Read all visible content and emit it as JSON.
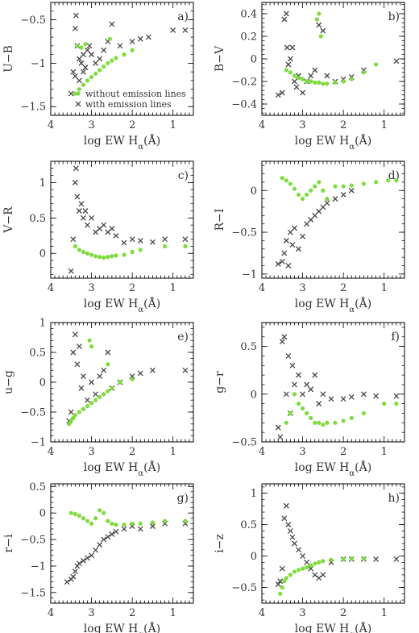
{
  "figure": {
    "colors": {
      "without": "#7fdc3f",
      "with": "#474747",
      "frame": "#000000",
      "text": "#333333"
    },
    "legend": {
      "without_label": "without emission lines",
      "with_label": "with emission lines",
      "placement": "bottom-right of panel a"
    }
  },
  "chart_data": [
    {
      "panel": "a)",
      "type": "scatter",
      "xlabel": "log EW H",
      "xlabel_sub": "α",
      "xlabel_tail": "(Å)",
      "ylabel": "U−B",
      "xlim": [
        4,
        0.5
      ],
      "ylim": [
        -1.6,
        -0.3
      ],
      "xticks": [
        4,
        3,
        2,
        1
      ],
      "yticks": [
        -0.5,
        -1,
        -1.5
      ],
      "ytick_labels": [
        "−0.5",
        "−1",
        "−1.5"
      ],
      "series": [
        {
          "name": "without emission lines",
          "marker": "dot",
          "x": [
            3.4,
            3.3,
            3.2,
            3.1,
            3.0,
            2.9,
            2.8,
            2.7,
            2.6,
            2.5,
            2.4,
            2.2,
            2.0,
            3.35,
            3.25,
            3.15,
            2.55
          ],
          "y": [
            -1.35,
            -1.3,
            -1.25,
            -1.2,
            -1.16,
            -1.12,
            -1.08,
            -1.04,
            -1.0,
            -0.97,
            -0.94,
            -0.9,
            -0.85,
            -0.8,
            -0.82,
            -0.78,
            -0.72
          ]
        },
        {
          "name": "with emission lines",
          "marker": "cross",
          "x": [
            3.5,
            3.45,
            3.4,
            3.38,
            3.35,
            3.3,
            3.25,
            3.2,
            3.15,
            3.1,
            3.05,
            3.0,
            2.9,
            2.8,
            2.7,
            2.6,
            2.5,
            2.3,
            2.0,
            1.8,
            1.6,
            1.0,
            0.7,
            3.4,
            3.3,
            3.2
          ],
          "y": [
            -1.35,
            -1.1,
            -0.6,
            -0.45,
            -0.8,
            -0.95,
            -1.0,
            -0.9,
            -1.05,
            -0.85,
            -0.8,
            -0.9,
            -1.0,
            -0.95,
            -0.85,
            -0.75,
            -0.55,
            -0.8,
            -0.75,
            -0.72,
            -0.7,
            -0.62,
            -0.62,
            -1.15,
            -1.2,
            -1.1
          ]
        }
      ]
    },
    {
      "panel": "b)",
      "type": "scatter",
      "xlabel": "log EW H",
      "xlabel_sub": "α",
      "xlabel_tail": "(Å)",
      "ylabel": "B−V",
      "xlim": [
        4,
        0.5
      ],
      "ylim": [
        -0.5,
        0.5
      ],
      "xticks": [
        4,
        3,
        2,
        1
      ],
      "yticks": [
        0.4,
        0.2,
        0,
        -0.2,
        -0.4
      ],
      "ytick_labels": [
        "0.4",
        "0.2",
        "0",
        "−0.2",
        "−0.4"
      ],
      "series": [
        {
          "name": "without emission lines",
          "marker": "dot",
          "x": [
            3.4,
            3.3,
            3.2,
            3.1,
            3.0,
            2.9,
            2.8,
            2.7,
            2.6,
            2.5,
            2.4,
            2.2,
            2.0,
            1.8,
            1.5,
            1.2,
            2.65,
            2.6,
            2.55
          ],
          "y": [
            -0.1,
            -0.12,
            -0.15,
            -0.17,
            -0.18,
            -0.2,
            -0.2,
            -0.21,
            -0.21,
            -0.22,
            -0.22,
            -0.21,
            -0.2,
            -0.18,
            -0.12,
            -0.05,
            0.35,
            0.4,
            0.2
          ]
        },
        {
          "name": "with emission lines",
          "marker": "cross",
          "x": [
            3.6,
            3.5,
            3.45,
            3.4,
            3.38,
            3.35,
            3.3,
            3.25,
            3.2,
            3.15,
            3.1,
            3.0,
            2.9,
            2.8,
            2.7,
            2.6,
            2.5,
            2.4,
            2.2,
            2.0,
            1.8,
            1.5,
            0.7
          ],
          "y": [
            -0.32,
            -0.3,
            0.35,
            0.4,
            0.1,
            -0.05,
            0.0,
            0.1,
            -0.2,
            -0.25,
            -0.15,
            -0.3,
            -0.2,
            -0.15,
            -0.1,
            0.3,
            0.25,
            -0.15,
            -0.2,
            -0.18,
            -0.16,
            -0.1,
            -0.02
          ]
        }
      ]
    },
    {
      "panel": "c)",
      "type": "scatter",
      "xlabel": "log EW H",
      "xlabel_sub": "α",
      "xlabel_tail": "(Å)",
      "ylabel": "V−R",
      "xlim": [
        4,
        0.5
      ],
      "ylim": [
        -0.35,
        1.3
      ],
      "xticks": [
        4,
        3,
        2,
        1
      ],
      "yticks": [
        1,
        0.5,
        0
      ],
      "ytick_labels": [
        "1",
        "0.5",
        "0"
      ],
      "series": [
        {
          "name": "without emission lines",
          "marker": "dot",
          "x": [
            3.4,
            3.3,
            3.2,
            3.1,
            3.0,
            2.9,
            2.8,
            2.7,
            2.6,
            2.5,
            2.4,
            2.2,
            2.0,
            1.8,
            1.2,
            0.7
          ],
          "y": [
            0.1,
            0.05,
            0.02,
            0.0,
            -0.02,
            -0.04,
            -0.05,
            -0.06,
            -0.05,
            -0.04,
            -0.03,
            -0.02,
            0.02,
            0.05,
            0.1,
            0.1
          ]
        },
        {
          "name": "with emission lines",
          "marker": "cross",
          "x": [
            3.5,
            3.45,
            3.4,
            3.38,
            3.35,
            3.3,
            3.25,
            3.2,
            3.15,
            3.1,
            3.0,
            2.9,
            2.8,
            2.7,
            2.6,
            2.5,
            2.4,
            2.2,
            2.0,
            1.8,
            1.5,
            1.2,
            0.7
          ],
          "y": [
            -0.25,
            0.2,
            1.0,
            1.2,
            0.8,
            0.6,
            0.7,
            0.5,
            0.6,
            0.4,
            0.5,
            0.3,
            0.35,
            0.4,
            0.3,
            0.35,
            0.25,
            0.15,
            0.2,
            0.18,
            0.16,
            0.2,
            0.2
          ]
        }
      ]
    },
    {
      "panel": "d)",
      "type": "scatter",
      "xlabel": "log EW H",
      "xlabel_sub": "α",
      "xlabel_tail": "(Å)",
      "ylabel": "R−I",
      "xlim": [
        4,
        0.5
      ],
      "ylim": [
        -1.05,
        0.35
      ],
      "xticks": [
        4,
        3,
        2,
        1
      ],
      "yticks": [
        0,
        -0.5,
        -1
      ],
      "ytick_labels": [
        "0",
        "−0.5",
        "−1"
      ],
      "series": [
        {
          "name": "without emission lines",
          "marker": "dot",
          "x": [
            3.5,
            3.4,
            3.3,
            3.2,
            3.1,
            3.0,
            2.9,
            2.8,
            2.7,
            2.6,
            2.5,
            2.4,
            2.2,
            2.0,
            1.8,
            1.5,
            1.2,
            0.9,
            0.7
          ],
          "y": [
            0.15,
            0.12,
            0.08,
            0.02,
            -0.05,
            -0.1,
            -0.05,
            0.0,
            0.05,
            0.1,
            0.0,
            -0.1,
            0.05,
            0.05,
            0.06,
            0.08,
            0.1,
            0.12,
            0.12
          ]
        },
        {
          "name": "with emission lines",
          "marker": "cross",
          "x": [
            3.6,
            3.5,
            3.45,
            3.4,
            3.35,
            3.3,
            3.25,
            3.2,
            3.1,
            3.0,
            2.9,
            2.8,
            2.7,
            2.6,
            2.5,
            2.4,
            2.2,
            2.0,
            1.8
          ],
          "y": [
            -0.88,
            -0.85,
            -0.75,
            -0.6,
            -0.9,
            -0.5,
            -0.65,
            -0.45,
            -0.7,
            -0.55,
            -0.4,
            -0.35,
            -0.3,
            -0.25,
            -0.2,
            -0.15,
            -0.1,
            -0.05,
            0.0
          ]
        }
      ]
    },
    {
      "panel": "e)",
      "type": "scatter",
      "xlabel": "log EW H",
      "xlabel_sub": "α",
      "xlabel_tail": "(Å)",
      "ylabel": "u−g",
      "xlim": [
        4,
        0.5
      ],
      "ylim": [
        -1.0,
        1.0
      ],
      "xticks": [
        4,
        3,
        2,
        1
      ],
      "yticks": [
        1,
        0.5,
        0,
        -0.5,
        -1
      ],
      "ytick_labels": [
        "1",
        "0.5",
        "0",
        "−0.5",
        "−1"
      ],
      "series": [
        {
          "name": "without emission lines",
          "marker": "dot",
          "x": [
            3.55,
            3.5,
            3.45,
            3.4,
            3.3,
            3.2,
            3.1,
            3.0,
            2.9,
            2.8,
            2.7,
            2.6,
            2.5,
            2.3,
            2.0,
            3.05,
            3.0,
            2.6
          ],
          "y": [
            -0.7,
            -0.65,
            -0.6,
            -0.55,
            -0.5,
            -0.45,
            -0.4,
            -0.35,
            -0.3,
            -0.25,
            -0.2,
            -0.15,
            -0.1,
            0.0,
            0.05,
            0.7,
            0.6,
            0.3
          ]
        },
        {
          "name": "with emission lines",
          "marker": "cross",
          "x": [
            3.55,
            3.5,
            3.45,
            3.4,
            3.35,
            3.3,
            3.25,
            3.2,
            3.1,
            3.0,
            2.9,
            2.8,
            2.7,
            2.6,
            2.5,
            2.3,
            2.0,
            1.8,
            1.5,
            0.7
          ],
          "y": [
            -0.65,
            -0.5,
            0.5,
            0.8,
            0.3,
            0.6,
            -0.1,
            0.1,
            -0.3,
            0.0,
            -0.2,
            0.1,
            0.2,
            0.5,
            -0.1,
            0.0,
            0.1,
            0.15,
            0.2,
            0.2
          ]
        }
      ]
    },
    {
      "panel": "f)",
      "type": "scatter",
      "xlabel": "log EW H",
      "xlabel_sub": "α",
      "xlabel_tail": "(Å)",
      "ylabel": "g−r",
      "xlim": [
        4,
        0.5
      ],
      "ylim": [
        -0.5,
        0.75
      ],
      "xticks": [
        4,
        3,
        2,
        1
      ],
      "yticks": [
        0.5,
        0,
        -0.5
      ],
      "ytick_labels": [
        "0.5",
        "0",
        "−0.5"
      ],
      "series": [
        {
          "name": "without emission lines",
          "marker": "dot",
          "x": [
            3.4,
            3.3,
            3.2,
            3.1,
            3.0,
            2.9,
            2.8,
            2.7,
            2.6,
            2.5,
            2.4,
            2.2,
            2.0,
            1.8,
            1.5,
            1.0,
            0.7
          ],
          "y": [
            -0.3,
            -0.2,
            0.0,
            -0.1,
            -0.15,
            -0.2,
            -0.25,
            -0.3,
            -0.3,
            -0.32,
            -0.3,
            -0.3,
            -0.28,
            -0.25,
            -0.2,
            -0.1,
            -0.1
          ]
        },
        {
          "name": "with emission lines",
          "marker": "cross",
          "x": [
            3.6,
            3.55,
            3.5,
            3.45,
            3.4,
            3.35,
            3.3,
            3.25,
            3.2,
            3.1,
            3.0,
            2.9,
            2.8,
            2.7,
            2.6,
            2.5,
            2.3,
            2.0,
            1.8,
            1.5,
            1.2,
            0.7
          ],
          "y": [
            -0.35,
            -0.45,
            0.55,
            0.6,
            0.0,
            0.4,
            -0.2,
            0.3,
            0.1,
            0.2,
            0.0,
            0.1,
            0.05,
            0.2,
            -0.1,
            0.0,
            -0.05,
            -0.05,
            -0.03,
            0.0,
            -0.02,
            -0.02
          ]
        }
      ]
    },
    {
      "panel": "g)",
      "type": "scatter",
      "xlabel": "log EW H",
      "xlabel_sub": "α",
      "xlabel_tail": "(Å)",
      "ylabel": "r−i",
      "xlim": [
        4,
        0.5
      ],
      "ylim": [
        -1.7,
        0.55
      ],
      "xticks": [
        4,
        3,
        2,
        1
      ],
      "yticks": [
        0.5,
        0,
        -0.5,
        -1,
        -1.5
      ],
      "ytick_labels": [
        "0.5",
        "0",
        "−0.5",
        "−1",
        "−1.5"
      ],
      "series": [
        {
          "name": "without emission lines",
          "marker": "dot",
          "x": [
            3.5,
            3.4,
            3.3,
            3.2,
            3.1,
            3.0,
            2.9,
            2.8,
            2.7,
            2.6,
            2.5,
            2.4,
            2.2,
            2.0,
            1.8,
            1.5,
            1.2,
            0.7
          ],
          "y": [
            0.0,
            -0.02,
            -0.05,
            -0.1,
            -0.15,
            -0.2,
            -0.1,
            0.05,
            0.0,
            -0.15,
            -0.2,
            -0.22,
            -0.22,
            -0.2,
            -0.2,
            -0.18,
            -0.15,
            -0.15
          ]
        },
        {
          "name": "with emission lines",
          "marker": "cross",
          "x": [
            3.6,
            3.5,
            3.45,
            3.4,
            3.35,
            3.3,
            3.2,
            3.1,
            3.0,
            2.9,
            2.8,
            2.7,
            2.6,
            2.5,
            2.4,
            2.2,
            2.0,
            1.8,
            1.5,
            1.2,
            0.7
          ],
          "y": [
            -1.3,
            -1.25,
            -1.2,
            -1.1,
            -1.0,
            -0.95,
            -0.9,
            -0.85,
            -0.8,
            -0.7,
            -0.6,
            -0.5,
            -0.45,
            -0.4,
            -0.35,
            -0.3,
            -0.25,
            -0.3,
            -0.25,
            -0.2,
            -0.2
          ]
        }
      ]
    },
    {
      "panel": "h)",
      "type": "scatter",
      "xlabel": "log EW H",
      "xlabel_sub": "α",
      "xlabel_tail": "(Å)",
      "ylabel": "i−z",
      "xlim": [
        4,
        0.5
      ],
      "ylim": [
        -0.75,
        1.15
      ],
      "xticks": [
        4,
        3,
        2,
        1
      ],
      "yticks": [
        1,
        0.5,
        0,
        -0.5
      ],
      "ytick_labels": [
        "1",
        "0.5",
        "0",
        "−0.5"
      ],
      "series": [
        {
          "name": "without emission lines",
          "marker": "dot",
          "x": [
            3.55,
            3.5,
            3.45,
            3.4,
            3.3,
            3.2,
            3.1,
            3.0,
            2.9,
            2.8,
            2.7,
            2.6,
            2.5,
            2.3,
            2.0,
            1.8,
            1.5
          ],
          "y": [
            -0.6,
            -0.5,
            -0.4,
            -0.35,
            -0.3,
            -0.25,
            -0.22,
            -0.2,
            -0.18,
            -0.15,
            -0.12,
            -0.1,
            -0.08,
            -0.06,
            -0.05,
            -0.04,
            -0.04
          ]
        },
        {
          "name": "with emission lines",
          "marker": "cross",
          "x": [
            3.6,
            3.55,
            3.5,
            3.45,
            3.4,
            3.35,
            3.3,
            3.25,
            3.2,
            3.1,
            3.0,
            2.9,
            2.8,
            2.7,
            2.6,
            2.5,
            2.3,
            2.0,
            1.8,
            1.5,
            1.2,
            0.7
          ],
          "y": [
            -0.45,
            -0.4,
            -0.2,
            0.6,
            0.8,
            0.5,
            0.4,
            0.3,
            0.2,
            0.1,
            0.0,
            -0.1,
            -0.2,
            -0.3,
            -0.35,
            -0.3,
            -0.1,
            -0.05,
            -0.05,
            -0.05,
            -0.05,
            -0.05
          ]
        }
      ]
    }
  ]
}
